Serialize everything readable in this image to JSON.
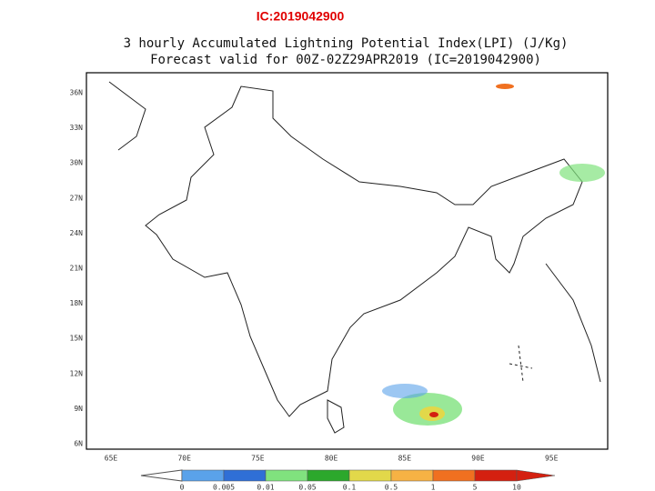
{
  "header": {
    "ic_label": "IC:2019042900"
  },
  "map": {
    "title": [
      "3 hourly Accumulated Lightning Potential Index(LPI) (J/Kg)",
      "Forecast valid for 00Z-02Z29APR2019 (IC=2019042900)"
    ],
    "lat_labels": [
      "36N",
      "33N",
      "30N",
      "27N",
      "24N",
      "21N",
      "18N",
      "15N",
      "12N",
      "9N",
      "6N"
    ],
    "lon_labels": [
      "65E",
      "70E",
      "75E",
      "80E",
      "85E",
      "90E",
      "95E"
    ]
  },
  "colorbar": {
    "labels": [
      "0",
      "0.005",
      "0.01",
      "0.05",
      "0.1",
      "0.5",
      "1",
      "5",
      "10"
    ],
    "colors": [
      "#5aa2ea",
      "#2f6fd6",
      "#80e27e",
      "#2ca82c",
      "#e2d84a",
      "#f6b244",
      "#f07020",
      "#d42010"
    ]
  }
}
